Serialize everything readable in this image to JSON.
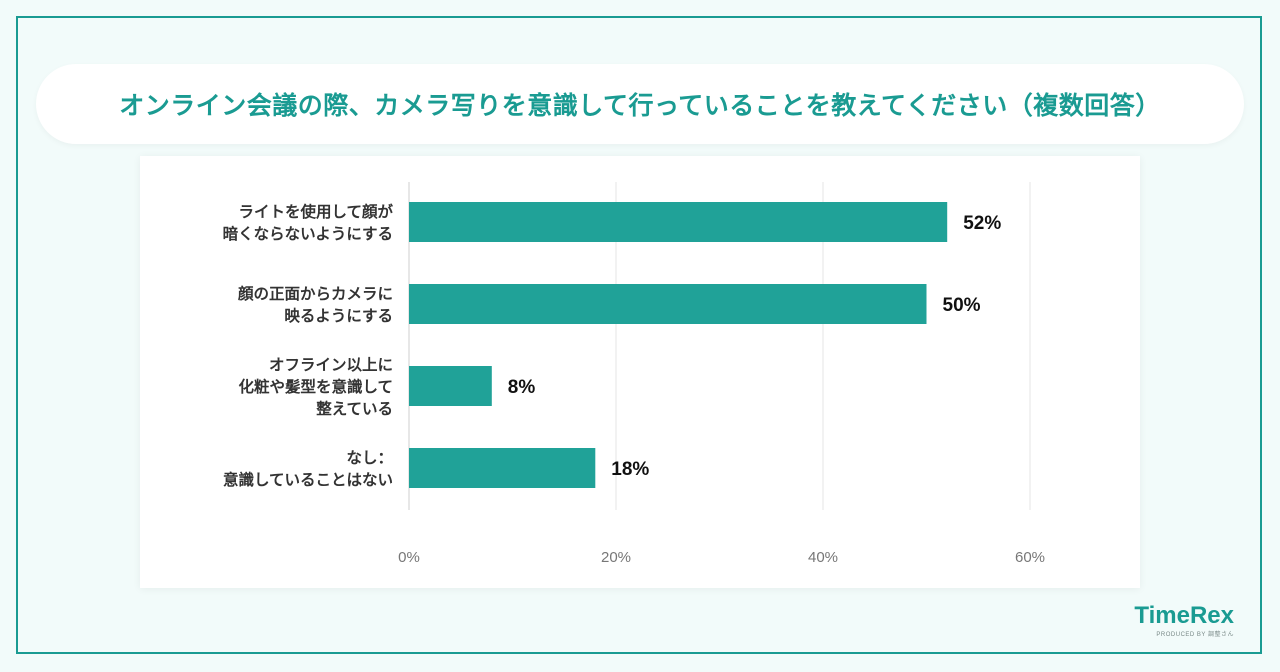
{
  "chart_data": {
    "type": "bar",
    "orientation": "horizontal",
    "title": "オンライン会議の際、カメラ写りを意識して行っていることを教えてください（複数回答）",
    "categories": [
      [
        "ライトを使用して顔が",
        "暗くならないようにする"
      ],
      [
        "顔の正面からカメラに",
        "映るようにする"
      ],
      [
        "オフライン以上に",
        "化粧や髪型を意識して",
        "整えている"
      ],
      [
        "なし：",
        "意識していることはない"
      ]
    ],
    "values": [
      52,
      50,
      8,
      18
    ],
    "value_labels": [
      "52%",
      "50%",
      "8%",
      "18%"
    ],
    "xlim": [
      0,
      60
    ],
    "xticks": [
      0,
      20,
      40,
      60
    ],
    "xtick_labels": [
      "0%",
      "20%",
      "40%",
      "60%"
    ],
    "grid": true,
    "bar_color": "#20a298"
  },
  "logo": {
    "name": "TimeRex",
    "tagline": "PRODUCED BY 調整さん"
  },
  "colors": {
    "accent": "#1a9b92",
    "background": "#f2fbfa"
  }
}
